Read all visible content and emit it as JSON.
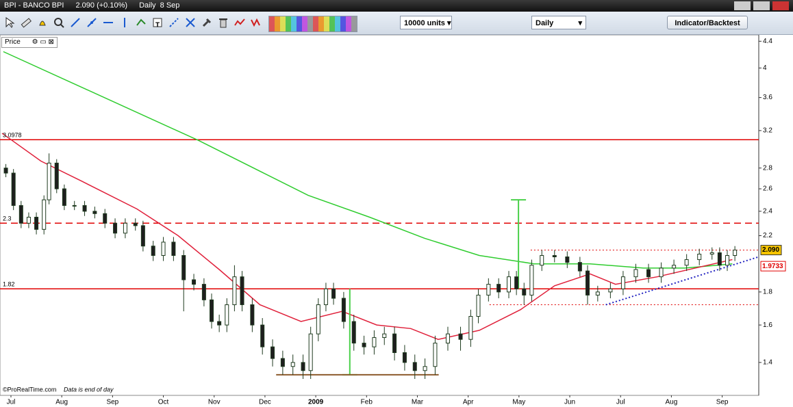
{
  "window": {
    "title": "BPI - BANCO BPI",
    "quote": "2.090 (+0.10%)",
    "period": "Daily  8 Sep"
  },
  "toolbar": {
    "units": "10000 units",
    "interval": "Daily",
    "button": "Indicator/Backtest"
  },
  "panel": {
    "label": "Price"
  },
  "footer": {
    "source": "©ProRealTime.com",
    "note": "Data is end of day"
  },
  "chart_data": {
    "type": "candlestick",
    "log_scale": true,
    "up_color": "#ffffff",
    "down_color": "#1e1e1e",
    "wick_color": "#1e3a1e",
    "xlim": [
      -0.175,
      14.72
    ],
    "ylim": [
      1.245,
      4.49
    ],
    "xticks": [
      {
        "value": 0,
        "label": "Jul"
      },
      {
        "value": 1,
        "label": "Aug"
      },
      {
        "value": 2,
        "label": "Sep"
      },
      {
        "value": 3,
        "label": "Oct"
      },
      {
        "value": 4,
        "label": "Nov"
      },
      {
        "value": 5,
        "label": "Dec"
      },
      {
        "value": 6,
        "label": "2009"
      },
      {
        "value": 7,
        "label": "Feb"
      },
      {
        "value": 8,
        "label": "Mar"
      },
      {
        "value": 9,
        "label": "Apr"
      },
      {
        "value": 10,
        "label": "May"
      },
      {
        "value": 11,
        "label": "Jun"
      },
      {
        "value": 12,
        "label": "Jul"
      },
      {
        "value": 13,
        "label": "Aug"
      },
      {
        "value": 14,
        "label": "Sep"
      }
    ],
    "yticks": [
      4.4,
      4,
      3.6,
      3.2,
      2.8,
      2.6,
      2.4,
      2.2,
      1.8,
      1.6,
      1.4
    ],
    "x": [
      -0.1,
      0.05,
      0.2,
      0.35,
      0.5,
      0.65,
      0.75,
      0.9,
      1.05,
      1.25,
      1.45,
      1.65,
      1.85,
      2.05,
      2.25,
      2.45,
      2.6,
      2.8,
      3.0,
      3.2,
      3.4,
      3.6,
      3.8,
      3.95,
      4.1,
      4.25,
      4.4,
      4.55,
      4.75,
      4.95,
      5.15,
      5.35,
      5.55,
      5.75,
      5.9,
      6.05,
      6.2,
      6.35,
      6.55,
      6.75,
      6.95,
      7.15,
      7.35,
      7.55,
      7.75,
      7.95,
      8.15,
      8.35,
      8.6,
      8.85,
      9.05,
      9.2,
      9.4,
      9.6,
      9.8,
      9.95,
      10.1,
      10.25,
      10.45,
      10.7,
      10.95,
      11.2,
      11.35,
      11.55,
      11.8,
      12.05,
      12.3,
      12.55,
      12.8,
      13.05,
      13.3,
      13.55,
      13.8,
      13.95,
      14.1,
      14.25
    ],
    "open": [
      2.8,
      2.75,
      2.45,
      2.3,
      2.35,
      2.25,
      2.5,
      2.85,
      2.6,
      2.45,
      2.45,
      2.4,
      2.38,
      2.3,
      2.22,
      2.3,
      2.28,
      2.12,
      2.05,
      2.15,
      2.05,
      1.88,
      1.85,
      1.75,
      1.62,
      1.6,
      1.72,
      1.9,
      1.72,
      1.6,
      1.48,
      1.42,
      1.38,
      1.4,
      1.36,
      1.55,
      1.72,
      1.82,
      1.76,
      1.62,
      1.5,
      1.48,
      1.53,
      1.55,
      1.45,
      1.4,
      1.36,
      1.38,
      1.5,
      1.55,
      1.52,
      1.65,
      1.78,
      1.85,
      1.8,
      1.9,
      1.82,
      1.78,
      1.98,
      2.05,
      2.04,
      2.0,
      1.94,
      1.78,
      1.8,
      1.82,
      1.9,
      1.95,
      1.9,
      1.96,
      1.98,
      2.02,
      2.06,
      2.07,
      1.98,
      2.05
    ],
    "high": [
      2.84,
      2.79,
      2.49,
      2.39,
      2.39,
      2.54,
      2.95,
      2.89,
      2.64,
      2.49,
      2.49,
      2.44,
      2.42,
      2.34,
      2.34,
      2.34,
      2.32,
      2.16,
      2.19,
      2.19,
      2.09,
      1.92,
      1.89,
      1.79,
      1.66,
      1.76,
      1.98,
      1.94,
      1.76,
      1.64,
      1.52,
      1.46,
      1.44,
      1.44,
      1.59,
      1.76,
      1.86,
      1.86,
      1.8,
      1.66,
      1.54,
      1.57,
      1.59,
      1.59,
      1.49,
      1.44,
      1.42,
      1.54,
      1.59,
      1.59,
      1.69,
      1.82,
      1.89,
      1.89,
      1.94,
      1.94,
      1.86,
      2.02,
      2.09,
      2.09,
      2.08,
      2.04,
      1.98,
      1.84,
      1.86,
      1.94,
      1.99,
      1.99,
      2.0,
      2.02,
      2.06,
      2.1,
      2.11,
      2.11,
      2.09,
      2.12
    ],
    "low": [
      2.71,
      2.41,
      2.26,
      2.26,
      2.21,
      2.21,
      2.46,
      2.56,
      2.41,
      2.41,
      2.36,
      2.34,
      2.26,
      2.18,
      2.18,
      2.24,
      2.08,
      2.01,
      2.01,
      2.01,
      1.68,
      1.81,
      1.71,
      1.58,
      1.56,
      1.56,
      1.68,
      1.68,
      1.56,
      1.44,
      1.38,
      1.34,
      1.34,
      1.32,
      1.32,
      1.51,
      1.68,
      1.72,
      1.58,
      1.46,
      1.44,
      1.44,
      1.49,
      1.41,
      1.36,
      1.32,
      1.32,
      1.34,
      1.46,
      1.46,
      1.48,
      1.61,
      1.74,
      1.76,
      1.76,
      1.78,
      1.72,
      1.74,
      1.94,
      2.0,
      1.96,
      1.9,
      1.72,
      1.74,
      1.76,
      1.78,
      1.86,
      1.86,
      1.86,
      1.92,
      1.94,
      1.98,
      2.02,
      1.94,
      1.94,
      2.01
    ],
    "close": [
      2.75,
      2.45,
      2.3,
      2.35,
      2.25,
      2.5,
      2.85,
      2.6,
      2.45,
      2.45,
      2.4,
      2.38,
      2.3,
      2.22,
      2.3,
      2.28,
      2.12,
      2.05,
      2.15,
      2.05,
      1.88,
      1.85,
      1.75,
      1.62,
      1.6,
      1.72,
      1.9,
      1.72,
      1.6,
      1.48,
      1.42,
      1.38,
      1.4,
      1.36,
      1.55,
      1.72,
      1.82,
      1.76,
      1.62,
      1.5,
      1.48,
      1.53,
      1.55,
      1.45,
      1.4,
      1.36,
      1.38,
      1.5,
      1.55,
      1.52,
      1.65,
      1.78,
      1.85,
      1.8,
      1.9,
      1.82,
      1.78,
      1.98,
      2.05,
      2.04,
      2.0,
      1.94,
      1.78,
      1.8,
      1.82,
      1.9,
      1.95,
      1.9,
      1.96,
      1.98,
      2.02,
      2.06,
      2.07,
      1.98,
      2.05,
      2.09
    ],
    "averages": [
      {
        "color": "#2ecc2e",
        "x": [
          -0.15,
          3.69,
          5.85,
          7.06,
          8.14,
          9.22,
          10.3,
          11.4,
          12.45,
          13.26,
          14.2
        ],
        "values": [
          4.24,
          3.09,
          2.54,
          2.35,
          2.18,
          2.05,
          1.99,
          1.99,
          1.96,
          1.96,
          1.99
        ]
      },
      {
        "color": "#e0203a",
        "x": [
          -0.175,
          0.59,
          1.4,
          2.48,
          3.29,
          4.1,
          4.9,
          5.71,
          6.52,
          7.2,
          7.87,
          8.41,
          9.22,
          10.03,
          10.7,
          11.4,
          11.9,
          12.72,
          14.2
        ],
        "values": [
          3.17,
          2.87,
          2.67,
          2.42,
          2.2,
          1.95,
          1.72,
          1.62,
          1.68,
          1.6,
          1.58,
          1.52,
          1.57,
          1.69,
          1.84,
          1.92,
          1.85,
          1.9,
          2.02
        ]
      }
    ],
    "hlines": [
      {
        "value": 3.0978,
        "color": "#e00000",
        "dash": "solid"
      },
      {
        "value": 2.3,
        "color": "#e00000",
        "dash": "dashed"
      },
      {
        "value": 1.82,
        "color": "#e00000",
        "dash": "solid"
      }
    ],
    "levels": [
      {
        "value": 2.09,
        "x0": 10.23,
        "color": "#e00000"
      },
      {
        "value": 1.72,
        "x0": 9.42,
        "color": "#e00000"
      }
    ],
    "trendline": {
      "x": [
        11.71,
        14.72
      ],
      "values": [
        1.72,
        2.04
      ],
      "color": "#2020c0"
    },
    "measures": [
      {
        "x": 9.99,
        "values": [
          1.82,
          2.5
        ],
        "color": "#4ad04a"
      },
      {
        "x": 6.67,
        "values": [
          1.82,
          1.34
        ],
        "color": "#4ad04a"
      }
    ],
    "base": {
      "x": [
        5.22,
        8.42
      ],
      "value": 1.34,
      "color": "#8b5a2b"
    },
    "price_box": {
      "value": 2.09,
      "label": "2.090",
      "color": "#f5c400"
    },
    "avg_box": {
      "value": 1.9733,
      "color": "#e00000"
    }
  }
}
